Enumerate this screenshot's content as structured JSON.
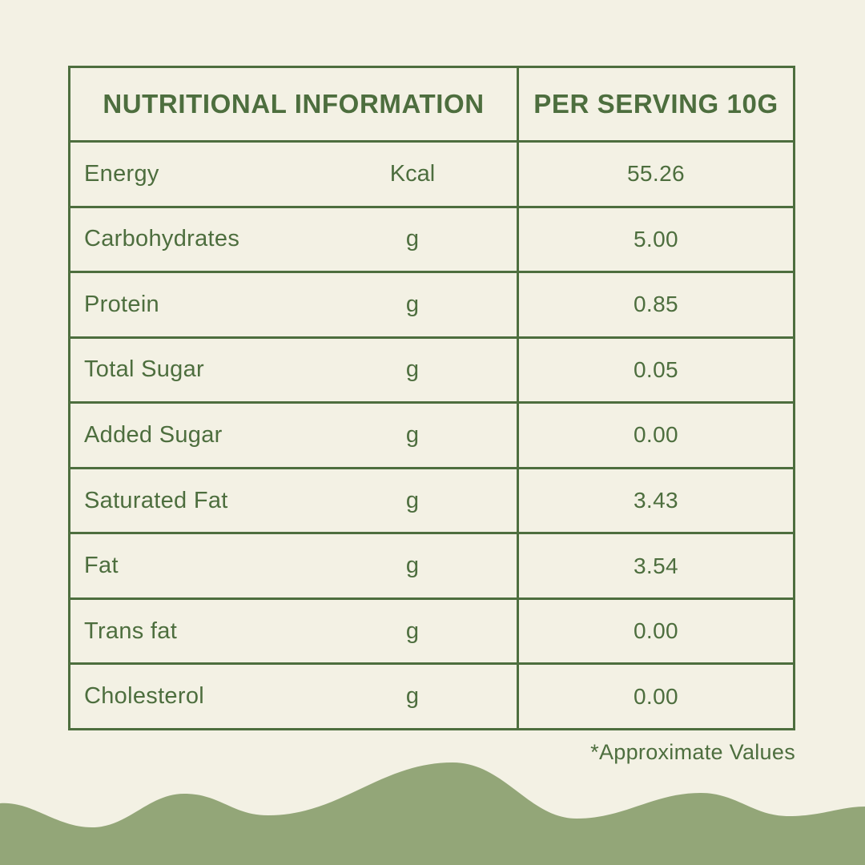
{
  "page": {
    "background_color": "#f3f1e4",
    "accent_green": "#4d6e3e",
    "wave_color": "#93a678"
  },
  "table": {
    "header": {
      "left": "NUTRITIONAL INFORMATION",
      "right": "PER SERVING 10G"
    },
    "rows": [
      {
        "label": "Energy",
        "unit": "Kcal",
        "value": "55.26"
      },
      {
        "label": "Carbohydrates",
        "unit": "g",
        "value": "5.00"
      },
      {
        "label": "Protein",
        "unit": "g",
        "value": "0.85"
      },
      {
        "label": "Total Sugar",
        "unit": "g",
        "value": "0.05"
      },
      {
        "label": "Added Sugar",
        "unit": "g",
        "value": "0.00"
      },
      {
        "label": "Saturated Fat",
        "unit": "g",
        "value": "3.43"
      },
      {
        "label": "Fat",
        "unit": "g",
        "value": "3.54"
      },
      {
        "label": "Trans fat",
        "unit": "g",
        "value": "0.00"
      },
      {
        "label": "Cholesterol",
        "unit": "g",
        "value": "0.00"
      }
    ]
  },
  "footnote": "*Approximate Values"
}
